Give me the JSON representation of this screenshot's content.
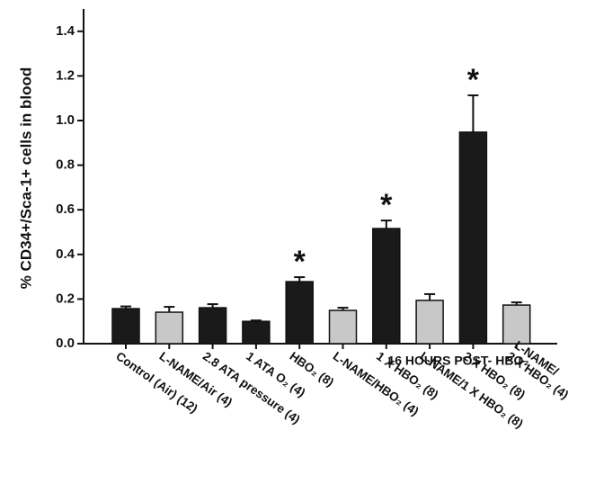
{
  "chart_data": {
    "type": "bar",
    "y_label": "% CD34+/Sca-1+ cells in blood",
    "categories": [
      "Control (Air) (12)",
      "L-NAME/Air (4)",
      "2.8 ATA pressure (4)",
      "1 ATA O₂ (4)",
      "HBO₂ (8)",
      "L-NAME/HBO₂ (4)",
      "1 X HBO₂ (8)",
      "L-NAME/1 X HBO₂ (8)",
      "2 X HBO₂ (8)",
      "L-NAME/\n2 X HBO₂ (4)"
    ],
    "values": [
      0.157,
      0.141,
      0.161,
      0.1,
      0.278,
      0.149,
      0.516,
      0.194,
      0.948,
      0.173
    ],
    "errors": [
      0.01,
      0.024,
      0.016,
      0.004,
      0.02,
      0.012,
      0.036,
      0.028,
      0.165,
      0.012
    ],
    "colors": [
      "#1a1a1a",
      "#c8c8c8",
      "#1a1a1a",
      "#1a1a1a",
      "#1a1a1a",
      "#c8c8c8",
      "#1a1a1a",
      "#c8c8c8",
      "#1a1a1a",
      "#c8c8c8"
    ],
    "ylim": [
      0,
      1.5
    ],
    "yticks": [
      {
        "value": 0,
        "label": "0.0"
      },
      0.2,
      0.4,
      0.6,
      0.8,
      {
        "value": 1,
        "label": "1.0"
      },
      1.2,
      1.4
    ],
    "annotations": [
      {
        "text": "*",
        "category": "HBO₂ (8)"
      },
      {
        "text": "*",
        "category": "1 X HBO₂ (8)"
      },
      {
        "text": "*",
        "category": "2 X HBO₂ (8)"
      }
    ],
    "group_label": "16 HOURS POST- HBO₂"
  }
}
